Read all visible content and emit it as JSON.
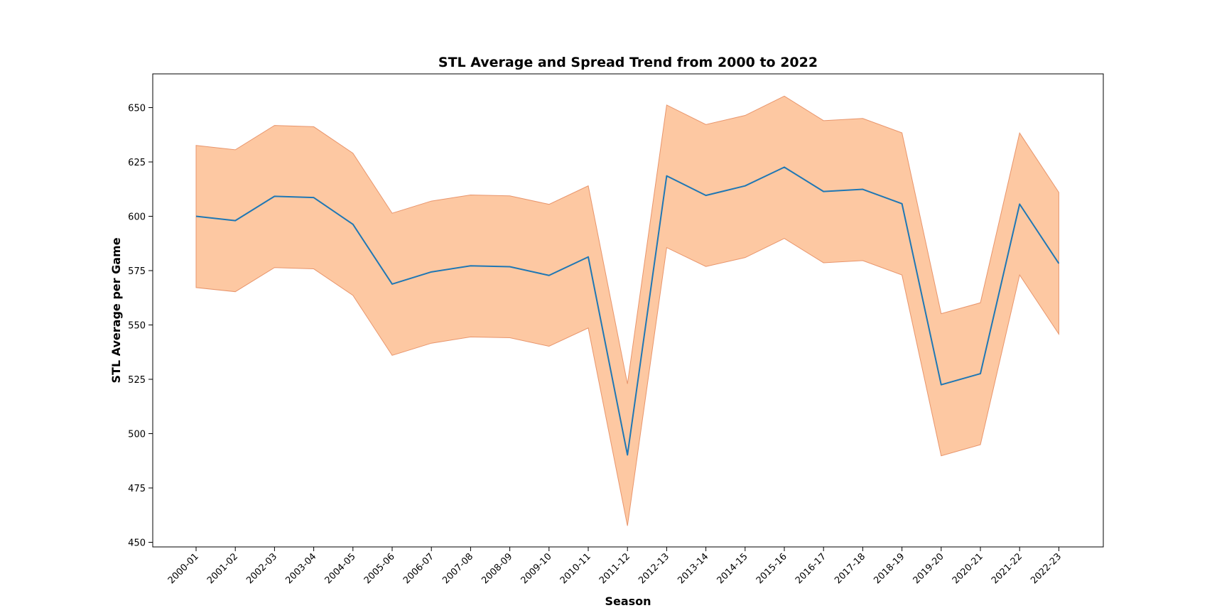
{
  "chart_data": {
    "type": "area",
    "title": "STL Average and Spread Trend from 2000 to 2022",
    "xlabel": "Season",
    "ylabel": "STL Average per Game",
    "categories": [
      "2000-01",
      "2001-02",
      "2002-03",
      "2003-04",
      "2004-05",
      "2005-06",
      "2006-07",
      "2007-08",
      "2008-09",
      "2009-10",
      "2010-11",
      "2011-12",
      "2012-13",
      "2013-14",
      "2014-15",
      "2015-16",
      "2016-17",
      "2017-18",
      "2018-19",
      "2019-20",
      "2020-21",
      "2021-22",
      "2022-23"
    ],
    "ylim": [
      448,
      665
    ],
    "yticks": [
      450,
      475,
      500,
      525,
      550,
      575,
      600,
      625,
      650
    ],
    "grid": false,
    "legend": "none",
    "series": [
      {
        "type": "line",
        "values": [
          600,
          598,
          609.2,
          608.6,
          596.3,
          568.8,
          574.4,
          577.2,
          576.8,
          572.8,
          581.3,
          490.2,
          618.6,
          609.6,
          614,
          622.6,
          611.4,
          612.4,
          605.8,
          522.5,
          527.6,
          605.6,
          578.3
        ]
      },
      {
        "type": "band",
        "upper": [
          632.6,
          630.6,
          641.8,
          641.2,
          629,
          601.4,
          607,
          609.8,
          609.4,
          605.5,
          614,
          522.9,
          651.2,
          642.2,
          646.4,
          655.3,
          644,
          645,
          638.4,
          555.2,
          560.2,
          638.3,
          611
        ],
        "lower": [
          567.2,
          565.3,
          576.4,
          575.8,
          563.6,
          536,
          541.6,
          544.5,
          544.1,
          540.2,
          548.6,
          457.6,
          585.6,
          576.9,
          581,
          589.8,
          578.6,
          579.6,
          573,
          489.8,
          494.9,
          573,
          545.8
        ]
      }
    ],
    "colors": {
      "line": "#1f77b4",
      "band_fill": "#fdc8a2",
      "band_edge": "#e8956c"
    }
  }
}
